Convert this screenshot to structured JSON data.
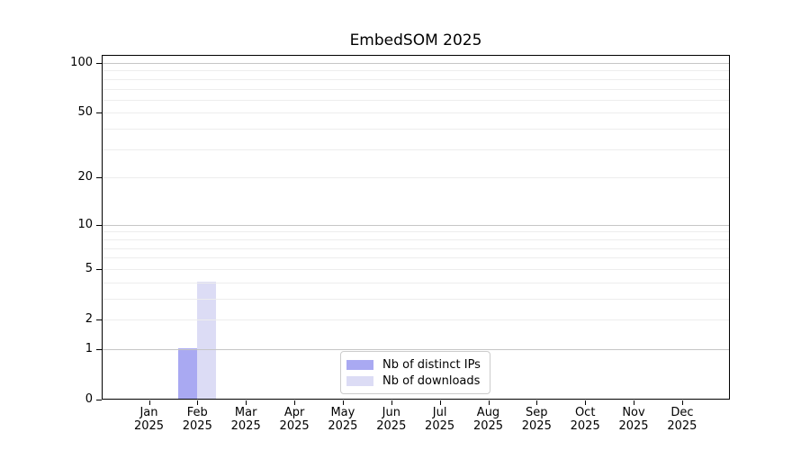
{
  "chart_data": {
    "type": "bar",
    "title": "EmbedSOM 2025",
    "categories": [
      "Jan 2025",
      "Feb 2025",
      "Mar 2025",
      "Apr 2025",
      "May 2025",
      "Jun 2025",
      "Jul 2025",
      "Aug 2025",
      "Sep 2025",
      "Oct 2025",
      "Nov 2025",
      "Dec 2025"
    ],
    "series": [
      {
        "name": "Nb of distinct IPs",
        "color": "#a9a9f2",
        "values": [
          0,
          1,
          0,
          0,
          0,
          0,
          0,
          0,
          0,
          0,
          0,
          0
        ]
      },
      {
        "name": "Nb of downloads",
        "color": "#dcdcf5",
        "values": [
          0,
          4,
          0,
          0,
          0,
          0,
          0,
          0,
          0,
          0,
          0,
          0
        ]
      }
    ],
    "xlabel": "",
    "ylabel": "",
    "yscale": "log1p",
    "ylim": [
      0,
      112
    ],
    "yticks": [
      0,
      1,
      2,
      5,
      10,
      20,
      50,
      100
    ],
    "major_gridlines": [
      1,
      10,
      100
    ],
    "minor_gridlines": [
      2,
      3,
      4,
      5,
      6,
      7,
      8,
      9,
      20,
      30,
      40,
      50,
      60,
      70,
      80,
      90
    ],
    "grid_color_major": "#c6c6c6",
    "grid_color_minor": "#ededed",
    "legend_position": "lower center",
    "background_color": "#ffffff"
  }
}
